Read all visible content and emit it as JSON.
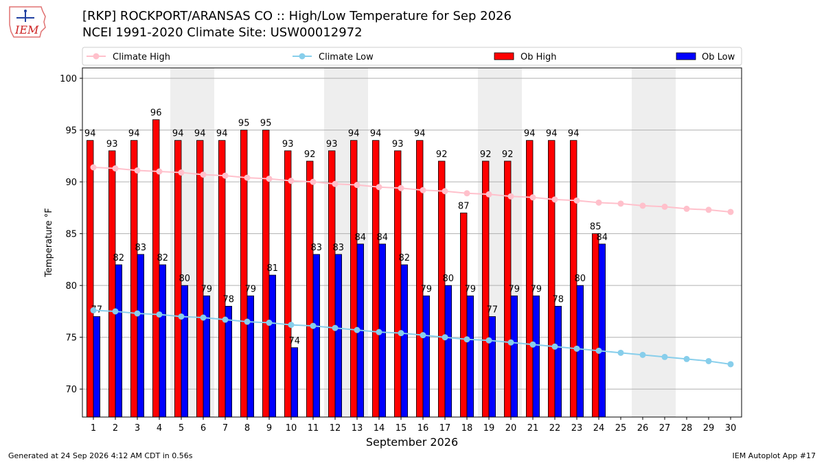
{
  "header": {
    "title_line1": "[RKP] ROCKPORT/ARANSAS CO :: High/Low Temperature for Sep 2026",
    "title_line2": "NCEI 1991-2020 Climate Site: USW00012972"
  },
  "logo": {
    "text": "IEM"
  },
  "footer": {
    "generated": "Generated at 24 Sep 2026 4:12 AM CDT in 0.56s",
    "app": "IEM Autoplot App #17"
  },
  "colors": {
    "ob_high": "#ff0000",
    "ob_low": "#0000ff",
    "climate_high": "#ffc0cb",
    "climate_low": "#87ceeb",
    "weekend_shade": "#eeeeee",
    "grid": "#b0b0b0"
  },
  "chart_data": {
    "type": "bar",
    "xlabel": "September 2026",
    "ylabel": "Temperature °F",
    "ylim": [
      67.3,
      101
    ],
    "yticks": [
      70,
      75,
      80,
      85,
      90,
      95,
      100
    ],
    "grid": "horizontal",
    "legend_placement": "top",
    "x": [
      1,
      2,
      3,
      4,
      5,
      6,
      7,
      8,
      9,
      10,
      11,
      12,
      13,
      14,
      15,
      16,
      17,
      18,
      19,
      20,
      21,
      22,
      23,
      24,
      25,
      26,
      27,
      28,
      29,
      30
    ],
    "shaded_days": [
      5,
      6,
      12,
      13,
      19,
      20,
      26,
      27
    ],
    "series": [
      {
        "name": "Ob High",
        "kind": "bar",
        "values": [
          94,
          93,
          94,
          96,
          94,
          94,
          94,
          95,
          95,
          93,
          92,
          93,
          94,
          94,
          93,
          94,
          92,
          87,
          92,
          92,
          94,
          94,
          94,
          85,
          null,
          null,
          null,
          null,
          null,
          null
        ]
      },
      {
        "name": "Ob Low",
        "kind": "bar",
        "values": [
          77,
          82,
          83,
          82,
          80,
          79,
          78,
          79,
          81,
          74,
          83,
          83,
          84,
          84,
          82,
          79,
          80,
          79,
          77,
          79,
          79,
          78,
          80,
          84,
          null,
          null,
          null,
          null,
          null,
          null
        ]
      },
      {
        "name": "Climate High",
        "kind": "line",
        "values": [
          91.4,
          91.3,
          91.1,
          91.0,
          90.9,
          90.7,
          90.6,
          90.4,
          90.3,
          90.1,
          90.0,
          89.8,
          89.7,
          89.5,
          89.4,
          89.2,
          89.1,
          88.9,
          88.8,
          88.6,
          88.5,
          88.3,
          88.2,
          88.0,
          87.9,
          87.7,
          87.6,
          87.4,
          87.3,
          87.1
        ]
      },
      {
        "name": "Climate Low",
        "kind": "line",
        "values": [
          77.6,
          77.5,
          77.3,
          77.2,
          77.0,
          76.9,
          76.7,
          76.5,
          76.4,
          76.2,
          76.1,
          75.9,
          75.7,
          75.5,
          75.4,
          75.2,
          75.0,
          74.8,
          74.7,
          74.5,
          74.3,
          74.1,
          73.9,
          73.7,
          73.5,
          73.3,
          73.1,
          72.9,
          72.7,
          72.4
        ]
      }
    ]
  }
}
